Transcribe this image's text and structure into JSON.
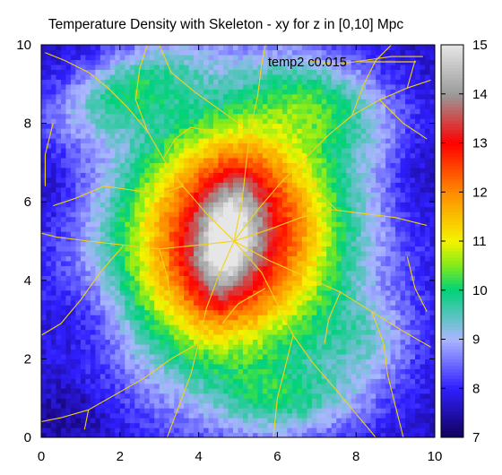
{
  "chart_data": {
    "type": "heatmap",
    "title": "Temperature Density with Skeleton - xy for z in [0,10] Mpc",
    "xlabel": "",
    "ylabel": "",
    "xlim": [
      0,
      10
    ],
    "ylim": [
      0,
      10
    ],
    "x_ticks": [
      "0",
      "2",
      "4",
      "6",
      "8",
      "10"
    ],
    "y_ticks": [
      "0",
      "2",
      "4",
      "6",
      "8",
      "10"
    ],
    "annotation": "temp2 c0.015",
    "colorbar": {
      "range": [
        7,
        15
      ],
      "ticks": [
        "7",
        "8",
        "9",
        "10",
        "11",
        "12",
        "13",
        "14",
        "15"
      ],
      "stops": [
        {
          "value": 7.0,
          "color": "#12005a"
        },
        {
          "value": 8.0,
          "color": "#2f1fff"
        },
        {
          "value": 9.0,
          "color": "#aab6ff"
        },
        {
          "value": 10.0,
          "color": "#00d27a"
        },
        {
          "value": 10.5,
          "color": "#7fea1c"
        },
        {
          "value": 11.0,
          "color": "#f4f400"
        },
        {
          "value": 12.0,
          "color": "#ff8a00"
        },
        {
          "value": 13.0,
          "color": "#ff0000"
        },
        {
          "value": 14.0,
          "color": "#9a9a9a"
        },
        {
          "value": 15.0,
          "color": "#e6e6e6"
        }
      ]
    },
    "background_level": 7.6,
    "blobs": [
      {
        "cx": 4.8,
        "cy": 5.0,
        "rx": 4.3,
        "ry": 4.6,
        "angle": -15,
        "peak": 3.7
      },
      {
        "cx": 4.9,
        "cy": 5.3,
        "rx": 2.9,
        "ry": 3.6,
        "angle": -15,
        "peak": 2.6
      },
      {
        "cx": 4.7,
        "cy": 5.0,
        "rx": 0.9,
        "ry": 2.0,
        "angle": -10,
        "peak": 1.9
      },
      {
        "cx": 2.2,
        "cy": 8.9,
        "rx": 2.6,
        "ry": 1.2,
        "angle": 25,
        "peak": 1.7
      },
      {
        "cx": 7.2,
        "cy": 8.6,
        "rx": 2.4,
        "ry": 1.4,
        "angle": -20,
        "peak": 1.4
      },
      {
        "cx": 6.3,
        "cy": 0.9,
        "rx": 2.5,
        "ry": 1.2,
        "angle": 0,
        "peak": 1.4
      },
      {
        "cx": 8.3,
        "cy": 2.4,
        "rx": 1.6,
        "ry": 1.4,
        "angle": 0,
        "peak": 1.0
      },
      {
        "cx": 1.2,
        "cy": 3.0,
        "rx": 1.4,
        "ry": 1.6,
        "angle": 0,
        "peak": -0.5
      },
      {
        "cx": 0.4,
        "cy": 6.3,
        "rx": 0.8,
        "ry": 1.6,
        "angle": 0,
        "peak": -0.4
      },
      {
        "cx": 9.5,
        "cy": 6.5,
        "rx": 0.8,
        "ry": 1.6,
        "angle": 0,
        "peak": -0.4
      },
      {
        "cx": 0.8,
        "cy": 0.6,
        "rx": 1.4,
        "ry": 1.0,
        "angle": 0,
        "peak": -0.4
      }
    ],
    "skeleton_color": "#f2d21a",
    "skeleton": [
      [
        [
          4.9,
          5.0
        ],
        [
          4.2,
          5.7
        ],
        [
          3.6,
          6.4
        ],
        [
          3.1,
          7.1
        ],
        [
          2.7,
          7.8
        ],
        [
          2.2,
          8.4
        ],
        [
          1.7,
          8.9
        ],
        [
          1.2,
          9.3
        ],
        [
          0.6,
          9.6
        ],
        [
          0.1,
          9.8
        ]
      ],
      [
        [
          4.9,
          5.0
        ],
        [
          5.5,
          5.8
        ],
        [
          6.1,
          6.5
        ],
        [
          6.7,
          7.1
        ],
        [
          7.3,
          7.7
        ],
        [
          7.9,
          8.2
        ],
        [
          8.6,
          8.6
        ],
        [
          9.3,
          8.9
        ],
        [
          9.9,
          9.1
        ]
      ],
      [
        [
          4.9,
          5.0
        ],
        [
          5.8,
          4.5
        ],
        [
          6.7,
          4.1
        ],
        [
          7.6,
          3.7
        ],
        [
          8.4,
          3.2
        ],
        [
          9.2,
          2.7
        ],
        [
          9.9,
          2.3
        ]
      ],
      [
        [
          4.9,
          5.0
        ],
        [
          4.5,
          4.1
        ],
        [
          4.2,
          3.3
        ],
        [
          4.0,
          2.4
        ],
        [
          3.8,
          1.6
        ],
        [
          3.5,
          0.8
        ],
        [
          3.2,
          0.0
        ]
      ],
      [
        [
          4.9,
          5.0
        ],
        [
          4.0,
          4.9
        ],
        [
          3.0,
          4.8
        ],
        [
          2.1,
          4.9
        ],
        [
          1.2,
          5.0
        ],
        [
          0.4,
          5.1
        ],
        [
          0.0,
          5.2
        ]
      ],
      [
        [
          4.9,
          5.0
        ],
        [
          5.1,
          6.0
        ],
        [
          5.2,
          6.9
        ],
        [
          5.3,
          7.8
        ],
        [
          5.5,
          8.7
        ],
        [
          5.6,
          9.5
        ],
        [
          5.7,
          10.0
        ]
      ],
      [
        [
          4.9,
          5.0
        ],
        [
          5.6,
          4.2
        ],
        [
          6.0,
          3.4
        ],
        [
          6.4,
          2.6
        ],
        [
          6.9,
          1.9
        ],
        [
          7.5,
          1.2
        ],
        [
          8.0,
          0.6
        ],
        [
          8.5,
          0.0
        ]
      ],
      [
        [
          4.9,
          5.0
        ],
        [
          5.8,
          5.3
        ],
        [
          6.6,
          5.6
        ],
        [
          7.4,
          5.8
        ],
        [
          8.2,
          5.7
        ],
        [
          9.0,
          5.6
        ],
        [
          9.8,
          5.4
        ]
      ],
      [
        [
          3.6,
          6.4
        ],
        [
          3.0,
          6.2
        ],
        [
          2.3,
          6.3
        ],
        [
          1.6,
          6.4
        ],
        [
          0.9,
          6.1
        ],
        [
          0.3,
          5.9
        ]
      ],
      [
        [
          2.7,
          7.8
        ],
        [
          2.4,
          8.6
        ],
        [
          2.5,
          9.4
        ],
        [
          2.7,
          10.0
        ]
      ],
      [
        [
          5.3,
          7.8
        ],
        [
          4.6,
          8.3
        ],
        [
          3.9,
          8.8
        ],
        [
          3.3,
          9.3
        ],
        [
          3.0,
          10.0
        ]
      ],
      [
        [
          6.7,
          7.1
        ],
        [
          7.0,
          6.3
        ],
        [
          7.5,
          5.8
        ]
      ],
      [
        [
          7.9,
          8.2
        ],
        [
          8.2,
          9.0
        ],
        [
          8.5,
          9.6
        ],
        [
          8.9,
          10.0
        ]
      ],
      [
        [
          8.6,
          8.6
        ],
        [
          9.2,
          8.0
        ],
        [
          9.8,
          7.6
        ]
      ],
      [
        [
          6.4,
          2.6
        ],
        [
          6.2,
          1.8
        ],
        [
          6.0,
          1.0
        ],
        [
          5.9,
          0.0
        ]
      ],
      [
        [
          4.0,
          2.4
        ],
        [
          3.3,
          2.0
        ],
        [
          2.6,
          1.5
        ],
        [
          1.9,
          1.1
        ],
        [
          1.2,
          0.7
        ],
        [
          0.5,
          0.5
        ],
        [
          0.0,
          0.4
        ]
      ],
      [
        [
          1.2,
          0.7
        ],
        [
          1.1,
          0.2
        ]
      ],
      [
        [
          8.4,
          3.2
        ],
        [
          8.7,
          2.4
        ],
        [
          8.8,
          1.6
        ],
        [
          9.0,
          0.8
        ],
        [
          9.2,
          0.0
        ]
      ],
      [
        [
          7.6,
          3.7
        ],
        [
          7.3,
          3.0
        ],
        [
          7.2,
          2.4
        ]
      ],
      [
        [
          3.0,
          4.8
        ],
        [
          3.2,
          4.1
        ],
        [
          3.3,
          3.4
        ]
      ],
      [
        [
          2.1,
          4.9
        ],
        [
          1.5,
          4.2
        ],
        [
          1.0,
          3.5
        ],
        [
          0.5,
          2.9
        ],
        [
          0.0,
          2.6
        ]
      ],
      [
        [
          5.7,
          3.8
        ],
        [
          5.0,
          3.4
        ],
        [
          4.6,
          2.9
        ]
      ],
      [
        [
          3.1,
          7.1
        ],
        [
          3.4,
          7.6
        ],
        [
          3.8,
          7.9
        ],
        [
          4.3,
          7.8
        ]
      ],
      [
        [
          0.3,
          8.0
        ],
        [
          0.1,
          7.2
        ],
        [
          0.1,
          6.4
        ]
      ],
      [
        [
          6.2,
          9.6
        ],
        [
          6.8,
          9.6
        ],
        [
          7.5,
          9.5
        ],
        [
          8.2,
          9.6
        ],
        [
          8.9,
          9.7
        ],
        [
          9.7,
          9.7
        ]
      ],
      [
        [
          9.5,
          9.6
        ],
        [
          9.3,
          8.9
        ]
      ],
      [
        [
          9.3,
          4.6
        ],
        [
          9.5,
          3.8
        ],
        [
          9.8,
          3.2
        ]
      ]
    ]
  }
}
